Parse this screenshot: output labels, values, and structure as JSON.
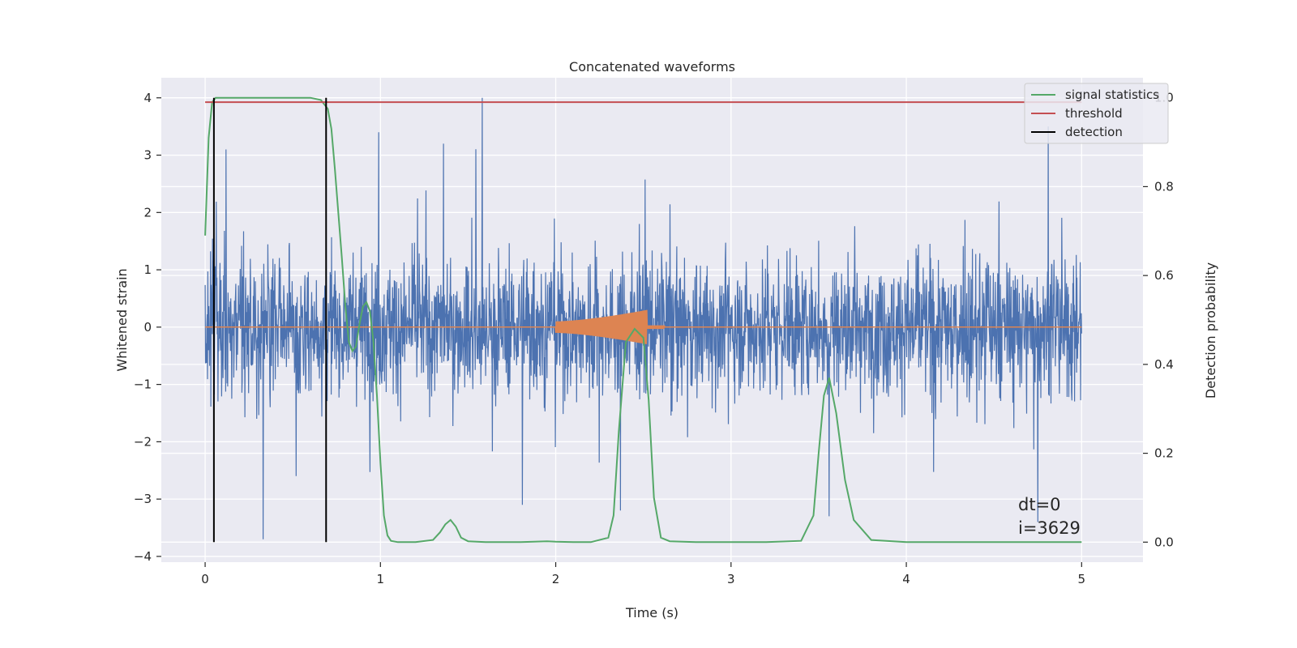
{
  "chart_data": {
    "type": "line",
    "title": "Concatenated waveforms",
    "xlabel": "Time (s)",
    "ylabel": "Whitened strain",
    "ylabel_right": "Detection probability",
    "xlim": [
      -0.25,
      5.35
    ],
    "ylim": [
      -4.1,
      4.35
    ],
    "ylim_right": [
      -0.045,
      1.045
    ],
    "x_ticks": [
      0,
      1,
      2,
      3,
      4,
      5
    ],
    "x_tick_labels": [
      "0",
      "1",
      "2",
      "3",
      "4",
      "5"
    ],
    "y_ticks": [
      -4,
      -3,
      -2,
      -1,
      0,
      1,
      2,
      3,
      4
    ],
    "y_tick_labels": [
      "−4",
      "−3",
      "−2",
      "−1",
      "0",
      "1",
      "2",
      "3",
      "4"
    ],
    "y2_ticks": [
      0.0,
      0.2,
      0.4,
      0.6,
      0.8,
      1.0
    ],
    "y2_tick_labels": [
      "0.0",
      "0.2",
      "0.4",
      "0.6",
      "0.8",
      "1.0"
    ],
    "grid": true,
    "legend_placement": "upper right",
    "colors": {
      "strain": "#4c72b0",
      "injection": "#dd8452",
      "signal_statistics": "#55a868",
      "threshold": "#c44e52",
      "detection": "#000000",
      "background": "#eaeaf2",
      "grid": "#ffffff"
    },
    "series": [
      {
        "name": "signal statistics",
        "axis": "right",
        "x": [
          0,
          0.02,
          0.04,
          0.06,
          0.08,
          0.1,
          0.2,
          0.4,
          0.6,
          0.66,
          0.7,
          0.72,
          0.74,
          0.76,
          0.78,
          0.8,
          0.82,
          0.84,
          0.86,
          0.88,
          0.9,
          0.92,
          0.94,
          0.96,
          0.98,
          1.0,
          1.02,
          1.04,
          1.06,
          1.1,
          1.2,
          1.3,
          1.34,
          1.37,
          1.4,
          1.43,
          1.46,
          1.5,
          1.6,
          1.8,
          1.95,
          2.0,
          2.1,
          2.2,
          2.3,
          2.33,
          2.36,
          2.4,
          2.45,
          2.5,
          2.53,
          2.56,
          2.6,
          2.65,
          2.8,
          3.0,
          3.2,
          3.4,
          3.47,
          3.5,
          3.53,
          3.56,
          3.6,
          3.65,
          3.7,
          3.8,
          4.0,
          4.5,
          5.0
        ],
        "y": [
          0.69,
          0.91,
          0.99,
          1.0,
          1.0,
          1.0,
          1.0,
          1.0,
          1.0,
          0.995,
          0.975,
          0.93,
          0.84,
          0.74,
          0.64,
          0.53,
          0.45,
          0.43,
          0.44,
          0.49,
          0.53,
          0.54,
          0.52,
          0.45,
          0.33,
          0.18,
          0.06,
          0.015,
          0.003,
          0.0,
          0.0,
          0.005,
          0.022,
          0.04,
          0.05,
          0.035,
          0.01,
          0.002,
          0.0,
          0.0,
          0.002,
          0.001,
          0.0,
          0.0,
          0.01,
          0.06,
          0.25,
          0.45,
          0.48,
          0.46,
          0.32,
          0.1,
          0.01,
          0.002,
          0.0,
          0.0,
          0.0,
          0.003,
          0.06,
          0.2,
          0.33,
          0.37,
          0.29,
          0.14,
          0.05,
          0.005,
          0.0,
          0.0,
          0.0
        ]
      },
      {
        "name": "threshold",
        "axis": "right",
        "x": [
          0,
          5
        ],
        "y": [
          0.99,
          0.99
        ]
      },
      {
        "name": "detection",
        "axis": "right",
        "type": "vlines",
        "x": [
          0.05,
          0.69
        ],
        "y_range": [
          0,
          1
        ]
      }
    ],
    "unlabeled_series": [
      {
        "axis": "left",
        "description_value": "noise",
        "x_range": [
          0,
          5
        ],
        "envelope_y": [
          -3.7,
          4.0
        ],
        "spikes": [
          {
            "x": 0.05,
            "y": 1.6
          },
          {
            "x": 0.12,
            "y": 3.1
          },
          {
            "x": 0.33,
            "y": -3.7
          },
          {
            "x": 0.52,
            "y": -2.6
          },
          {
            "x": 0.69,
            "y": 1.8
          },
          {
            "x": 0.99,
            "y": 3.4
          },
          {
            "x": 1.36,
            "y": 3.2
          },
          {
            "x": 1.58,
            "y": 4.0
          },
          {
            "x": 1.81,
            "y": -3.1
          },
          {
            "x": 2.37,
            "y": -3.2
          },
          {
            "x": 3.56,
            "y": -3.3
          },
          {
            "x": 4.75,
            "y": -3.4
          },
          {
            "x": 4.81,
            "y": 3.5
          }
        ]
      },
      {
        "axis": "left",
        "description_value": "injection",
        "x_range": [
          0,
          5
        ],
        "burst_x_range": [
          2.0,
          2.52
        ],
        "burst_amplitude_range": [
          0.1,
          0.3
        ]
      }
    ],
    "annotation": [
      "dt=0",
      "i=3629"
    ]
  }
}
